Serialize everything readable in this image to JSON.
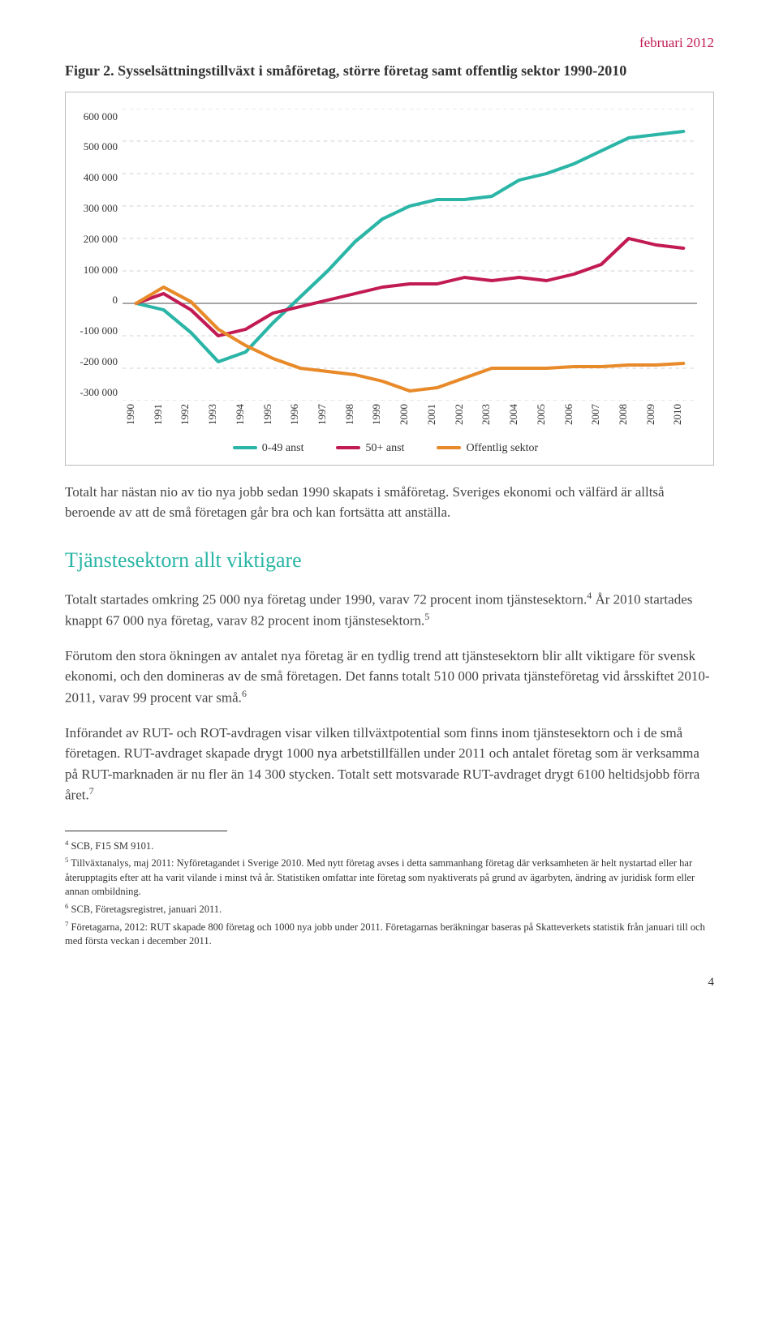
{
  "header": {
    "date": "februari 2012"
  },
  "figure": {
    "label": "Figur 2. Sysselsättningstillväxt i småföretag, större företag samt offentlig sektor 1990-2010",
    "chart": {
      "type": "line",
      "ylim": [
        -300000,
        600000
      ],
      "ytick_step": 100000,
      "y_ticks": [
        "600 000",
        "500 000",
        "400 000",
        "300 000",
        "200 000",
        "100 000",
        "0",
        "-100 000",
        "-200 000",
        "-300 000"
      ],
      "x_labels": [
        "1990",
        "1991",
        "1992",
        "1993",
        "1994",
        "1995",
        "1996",
        "1997",
        "1998",
        "1999",
        "2000",
        "2001",
        "2002",
        "2003",
        "2004",
        "2005",
        "2006",
        "2007",
        "2008",
        "2009",
        "2010"
      ],
      "grid_color": "#d0d0d0",
      "grid_dash": "4,4",
      "background_color": "#ffffff",
      "line_width": 4,
      "series": [
        {
          "name": "0-49 anst",
          "color": "#2ab5a6",
          "values": [
            0,
            -20000,
            -90000,
            -180000,
            -150000,
            -60000,
            20000,
            100000,
            190000,
            260000,
            300000,
            320000,
            320000,
            330000,
            380000,
            400000,
            430000,
            470000,
            510000,
            520000,
            530000
          ]
        },
        {
          "name": "50+ anst",
          "color": "#c21b54",
          "values": [
            0,
            30000,
            -20000,
            -100000,
            -80000,
            -30000,
            -10000,
            10000,
            30000,
            50000,
            60000,
            60000,
            80000,
            70000,
            80000,
            70000,
            90000,
            120000,
            200000,
            180000,
            170000
          ]
        },
        {
          "name": "Offentlig sektor",
          "color": "#e88a2a",
          "values": [
            0,
            50000,
            5000,
            -80000,
            -130000,
            -170000,
            -200000,
            -210000,
            -220000,
            -240000,
            -270000,
            -260000,
            -230000,
            -200000,
            -200000,
            -200000,
            -195000,
            -195000,
            -190000,
            -190000,
            -185000
          ]
        }
      ],
      "legend": {
        "items": [
          "0-49 anst",
          "50+ anst",
          "Offentlig sektor"
        ],
        "colors": [
          "#2ab5a6",
          "#c21b54",
          "#e88a2a"
        ]
      }
    }
  },
  "para1": "Totalt har nästan nio av tio nya jobb sedan 1990 skapats i småföretag. Sveriges ekonomi och välfärd är alltså beroende av att de små företagen går bra och kan fortsätta att anställa.",
  "section_heading": "Tjänstesektorn allt viktigare",
  "para2_a": "Totalt startades omkring 25 000 nya företag under 1990, varav 72 procent inom tjänstesektorn.",
  "para2_b": " År 2010 startades knappt 67 000 nya företag, varav 82 procent inom tjänstesektorn.",
  "para3_a": "Förutom den stora ökningen av antalet nya företag är en tydlig trend att tjänstesektorn blir allt viktigare för svensk ekonomi, och den domineras av de små företagen. Det fanns totalt 510 000 privata tjänsteföretag vid årsskiftet 2010-2011, varav 99 procent var små.",
  "para4": "Införandet av RUT- och ROT-avdragen visar vilken tillväxtpotential som finns inom tjänstesektorn och i de små företagen. RUT-avdraget skapade drygt 1000 nya arbetstillfällen under 2011 och antalet företag som är verksamma på RUT-marknaden är nu fler än 14 300 stycken. Totalt sett motsvarade RUT-avdraget drygt 6100 heltidsjobb förra året.",
  "footnotes": {
    "f4": "SCB, F15 SM 9101.",
    "f5": "Tillväxtanalys, maj 2011: Nyföretagandet i Sverige 2010. Med nytt företag avses i detta sammanhang företag där verksamheten är helt nystartad eller har återupptagits efter att ha varit vilande i minst två år. Statistiken omfattar inte företag som nyaktiverats på grund av ägarbyten, ändring av juridisk form eller annan ombildning.",
    "f6": "SCB, Företagsregistret, januari 2011.",
    "f7": "Företagarna, 2012: RUT skapade 800 företag och 1000 nya jobb under 2011. Företagarnas beräkningar baseras på Skatteverkets statistik från januari till och med första veckan i december 2011."
  },
  "page_number": "4",
  "sup": {
    "s4": "4",
    "s5": "5",
    "s6": "6",
    "s7": "7"
  }
}
